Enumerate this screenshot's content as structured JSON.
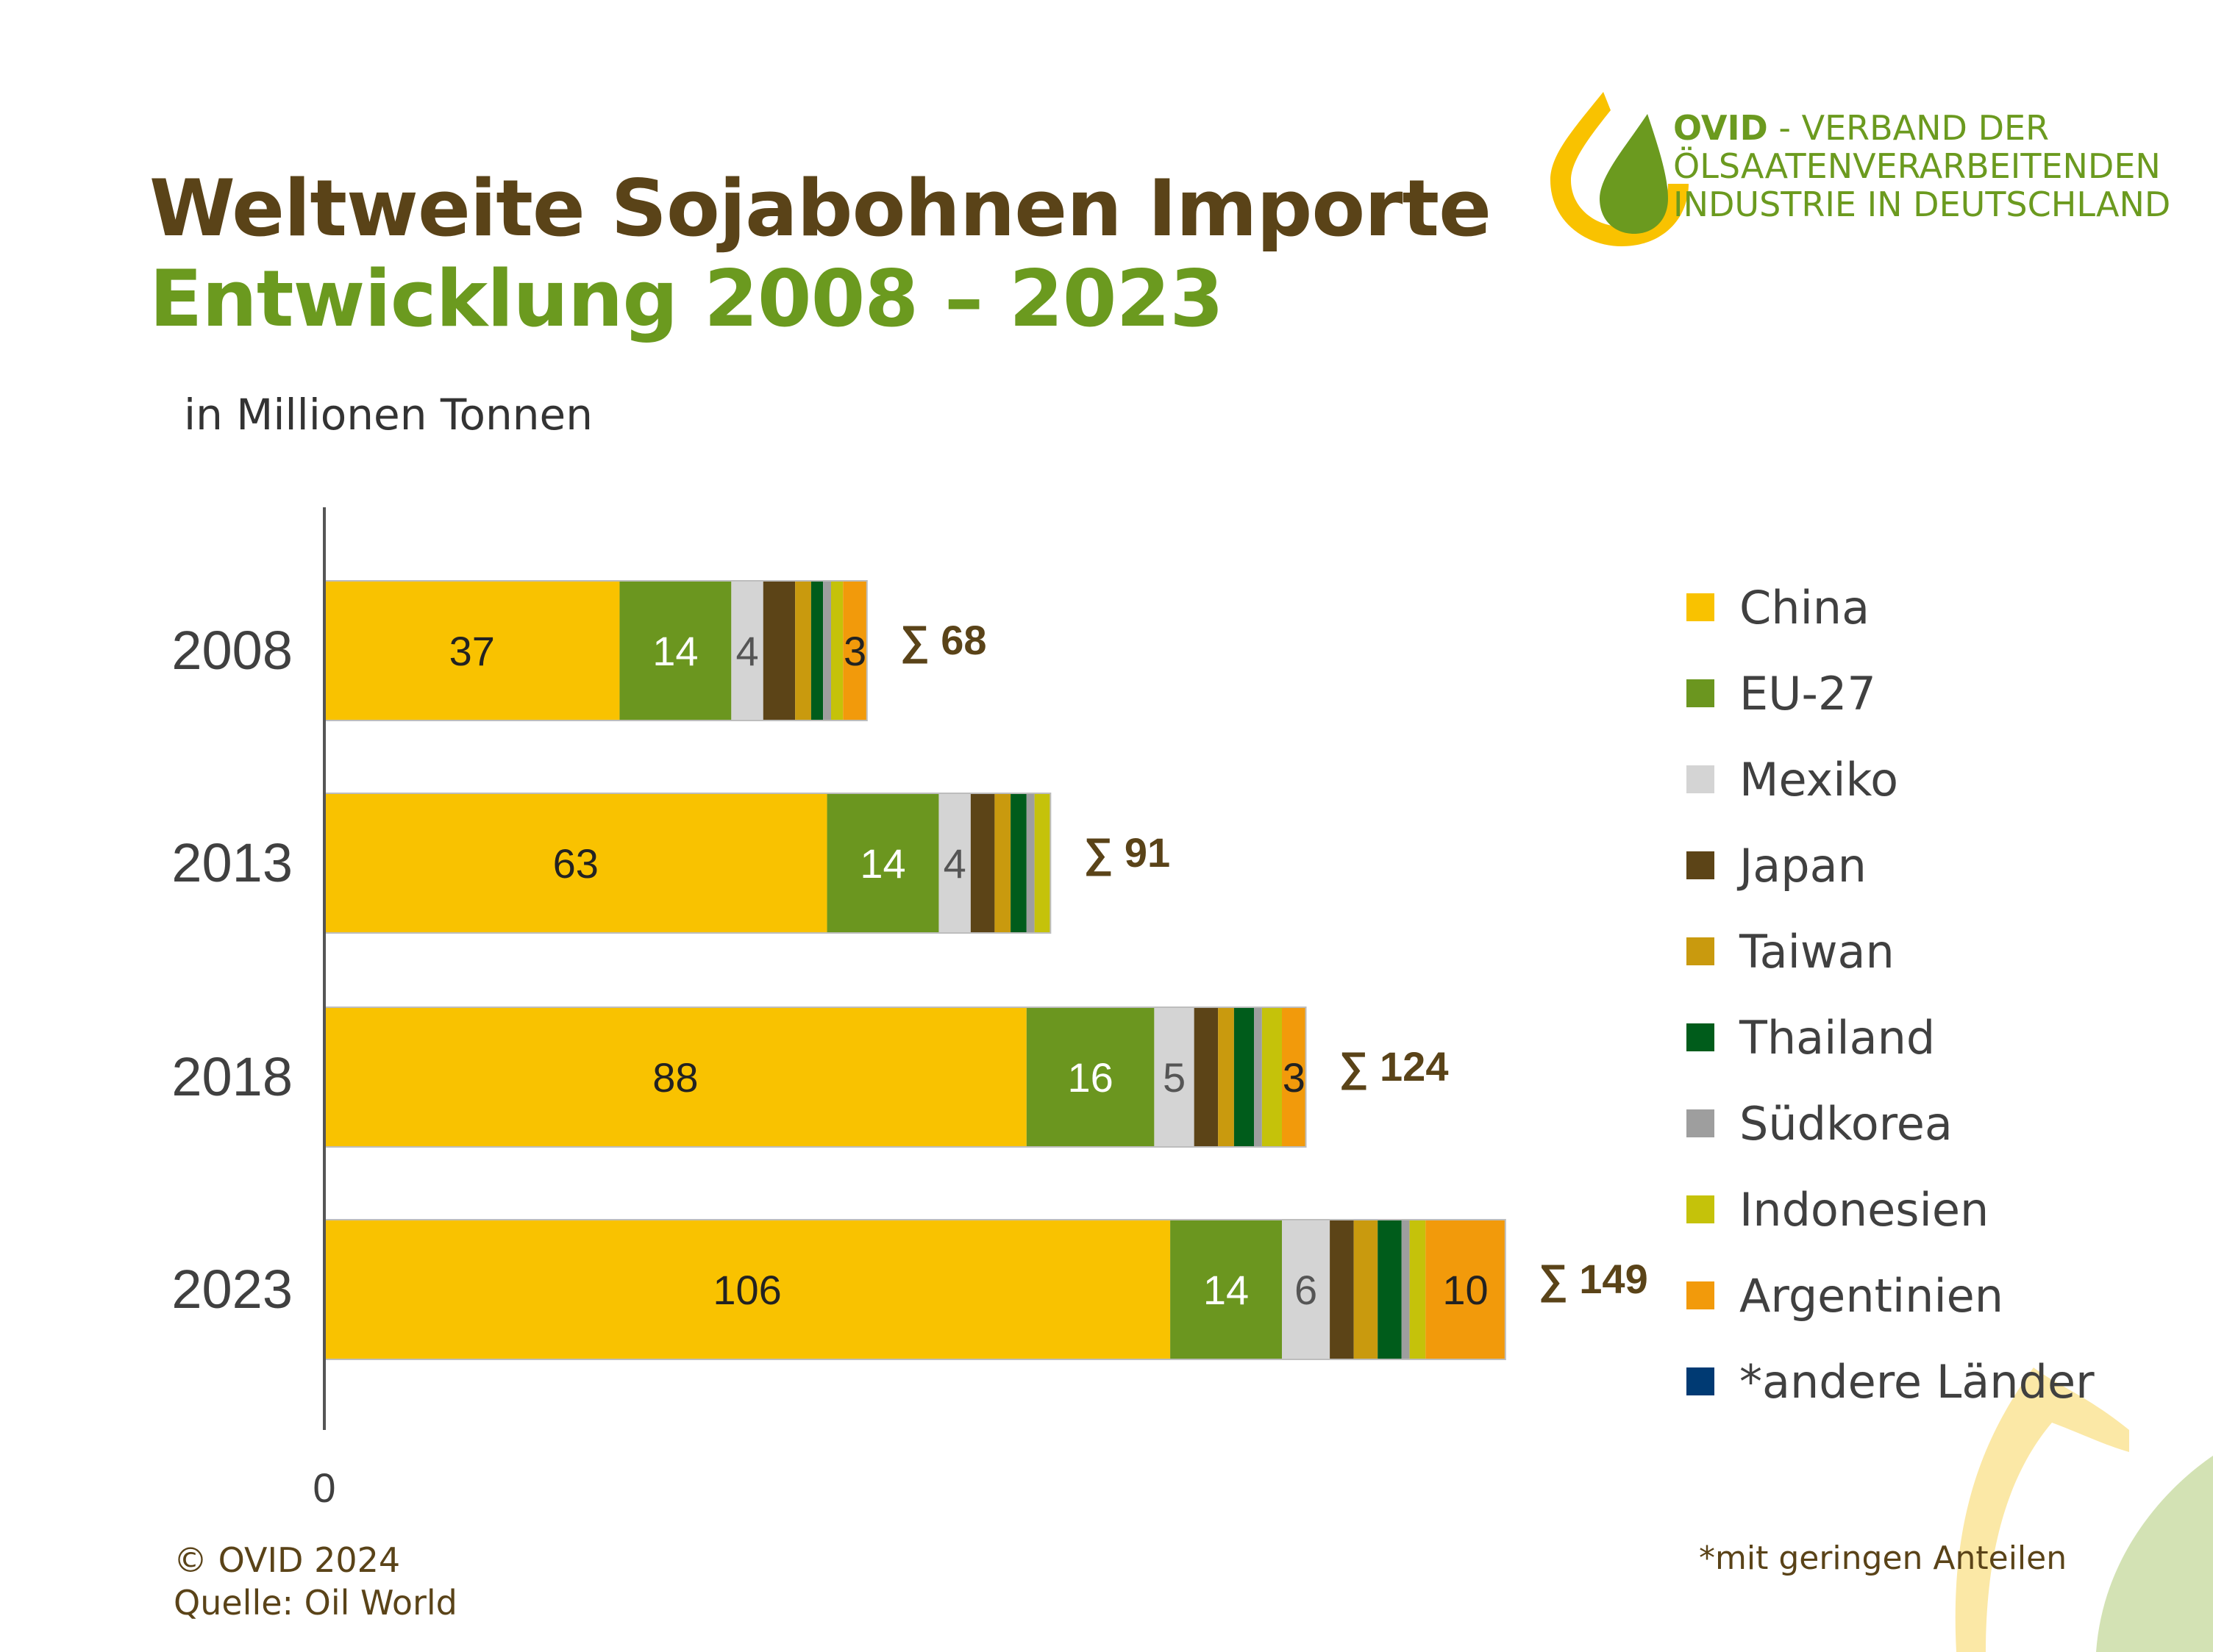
{
  "header": {
    "title": "Weltweite Sojabohnen Importe",
    "subtitle": "Entwicklung 2008 – 2023",
    "unit": "in Millionen Tonnen"
  },
  "logo": {
    "name": "OVID",
    "line1_rest": " - VERBAND DER",
    "line2": "ÖLSAATENVERARBEITENDEN",
    "line3": "INDUSTRIE IN DEUTSCHLAND"
  },
  "footer": {
    "copyright": "© OVID 2024",
    "source": "Quelle: Oil World",
    "footnote": "*mit geringen Anteilen"
  },
  "chart_data": {
    "type": "bar",
    "orientation": "horizontal",
    "stacked": true,
    "categories": [
      "2008",
      "2013",
      "2018",
      "2023"
    ],
    "x_tick_labels": [
      "0"
    ],
    "legend_position": "right",
    "series": [
      {
        "name": "China",
        "color": "#f9c200",
        "values": [
          37,
          63,
          88,
          106
        ],
        "labels": [
          "37",
          "63",
          "88",
          "106"
        ]
      },
      {
        "name": "EU-27",
        "color": "#6b961f",
        "values": [
          14,
          14,
          16,
          14
        ],
        "labels": [
          "14",
          "14",
          "16",
          "14"
        ]
      },
      {
        "name": "Mexiko",
        "color": "#d4d4d4",
        "values": [
          4,
          4,
          5,
          6
        ],
        "labels": [
          "4",
          "4",
          "5",
          "6"
        ]
      },
      {
        "name": "Japan",
        "color": "#5c4417",
        "values": [
          4,
          3,
          3,
          3
        ],
        "labels": [
          "",
          "",
          "",
          ""
        ]
      },
      {
        "name": "Taiwan",
        "color": "#c99a0e",
        "values": [
          2,
          2,
          2,
          3
        ],
        "labels": [
          "",
          "",
          "",
          ""
        ]
      },
      {
        "name": "Thailand",
        "color": "#005c1b",
        "values": [
          1.5,
          2,
          2.5,
          3
        ],
        "labels": [
          "",
          "",
          "",
          ""
        ]
      },
      {
        "name": "Südkorea",
        "color": "#9e9e9e",
        "values": [
          1,
          1,
          1,
          1
        ],
        "labels": [
          "",
          "",
          "",
          ""
        ]
      },
      {
        "name": "Indonesien",
        "color": "#c5c20a",
        "values": [
          1.5,
          2,
          2.5,
          2
        ],
        "labels": [
          "",
          "",
          "",
          ""
        ]
      },
      {
        "name": "Argentinien",
        "color": "#f29a0b",
        "values": [
          3,
          0,
          3,
          10
        ],
        "labels": [
          "3",
          "",
          "3",
          "10"
        ]
      },
      {
        "name": "*andere Länder",
        "color": "#003a73",
        "values": [
          0,
          0,
          0,
          0
        ],
        "labels": [
          "",
          "",
          "",
          ""
        ]
      }
    ],
    "totals": [
      "∑ 68",
      "∑ 91",
      "∑ 124",
      "∑ 149"
    ],
    "label_colors": {
      "China": "#222222",
      "EU-27": "#ffffff",
      "Mexiko": "#555555",
      "Argentinien": "#222222"
    },
    "total_color": "#5a4318"
  }
}
